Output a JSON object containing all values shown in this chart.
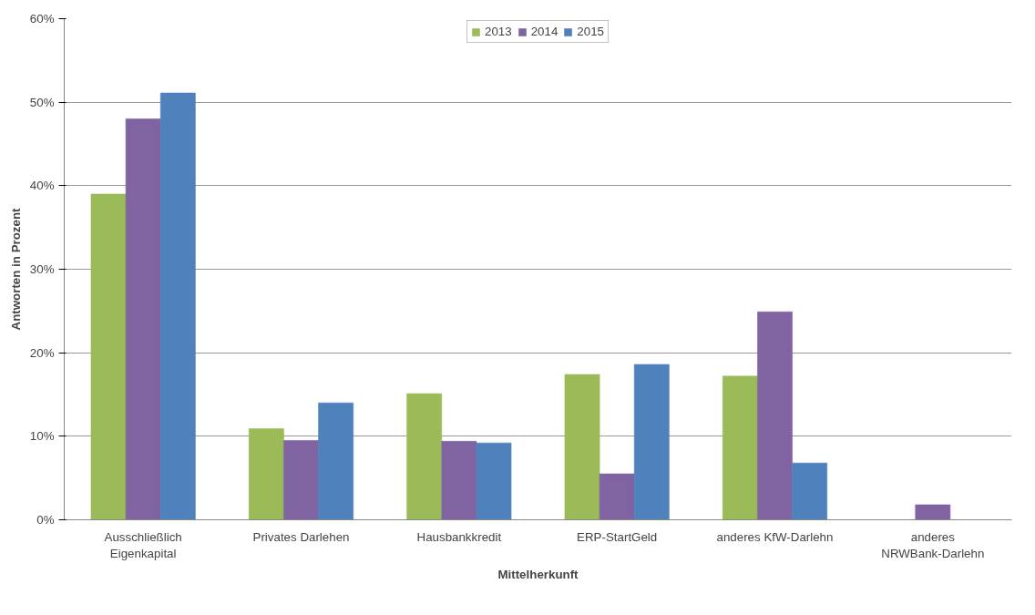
{
  "chart_data": {
    "type": "bar",
    "xlabel": "Mittelherkunft",
    "ylabel": "Antworten in Prozent",
    "categories": [
      "Ausschließlich Eigenkapital",
      "Privates Darlehen",
      "Hausbankkredit",
      "ERP-StartGeld",
      "anderes KfW-Darlehn",
      "anderes NRWBank-Darlehn"
    ],
    "series": [
      {
        "name": "2013",
        "color": "#9bbb59",
        "values": [
          39.0,
          10.9,
          15.1,
          17.4,
          17.2,
          null
        ]
      },
      {
        "name": "2014",
        "color": "#8064a2",
        "values": [
          48.0,
          9.5,
          9.4,
          5.5,
          24.9,
          1.8
        ]
      },
      {
        "name": "2015",
        "color": "#4f81bd",
        "values": [
          51.1,
          14.0,
          9.2,
          18.6,
          6.8,
          null
        ]
      }
    ],
    "ylim": [
      0,
      60
    ],
    "yticks": [
      {
        "value": 0,
        "label": "0%"
      },
      {
        "value": 10,
        "label": "10%"
      },
      {
        "value": 20,
        "label": "20%"
      },
      {
        "value": 30,
        "label": "30%"
      },
      {
        "value": 40,
        "label": "40%"
      },
      {
        "value": 50,
        "label": "50%"
      },
      {
        "value": 60,
        "label": "60%"
      }
    ],
    "grid": "y",
    "legend": "top"
  }
}
